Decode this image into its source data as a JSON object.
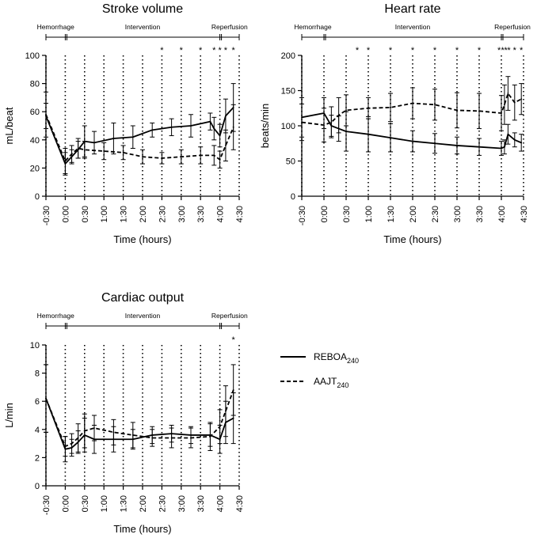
{
  "chart_data": [
    {
      "id": "sv",
      "type": "line",
      "title": "Stroke volume",
      "xlabel": "Time (hours)",
      "ylabel": "mL/beat",
      "ylim": [
        0,
        100
      ],
      "yticks": [
        0,
        20,
        40,
        60,
        80,
        100
      ],
      "xticks": [
        "-0:30",
        "0:00",
        "0:30",
        "1:00",
        "1:30",
        "2:00",
        "2:30",
        "3:00",
        "3:30",
        "4:00",
        "4:30"
      ],
      "phases": [
        "Hemorrhage",
        "Intervention",
        "Reperfusion"
      ],
      "series": [
        {
          "name": "REBOA240",
          "style": "solid",
          "points": [
            {
              "x": -0.5,
              "y": 57,
              "err": 9
            },
            {
              "x": 0,
              "y": 23,
              "err": 8
            },
            {
              "x": 0.167,
              "y": 28,
              "err": 5
            },
            {
              "x": 0.333,
              "y": 33,
              "err": 6
            },
            {
              "x": 0.5,
              "y": 39,
              "err": 11
            },
            {
              "x": 0.75,
              "y": 38,
              "err": 8
            },
            {
              "x": 1.25,
              "y": 41,
              "err": 11
            },
            {
              "x": 1.75,
              "y": 42,
              "err": 8
            },
            {
              "x": 2.25,
              "y": 47,
              "err": 5
            },
            {
              "x": 2.75,
              "y": 49,
              "err": 6
            },
            {
              "x": 3.25,
              "y": 50,
              "err": 8
            },
            {
              "x": 3.75,
              "y": 53,
              "err": 6
            },
            {
              "x": 3.85,
              "y": 48,
              "err": 8
            },
            {
              "x": 4.0,
              "y": 43,
              "err": 8
            },
            {
              "x": 4.15,
              "y": 57,
              "err": 12
            },
            {
              "x": 4.35,
              "y": 63,
              "err": 17
            }
          ]
        },
        {
          "name": "AAJT240",
          "style": "dashed",
          "points": [
            {
              "x": -0.5,
              "y": 58,
              "err": 16
            },
            {
              "x": 0,
              "y": 25,
              "err": 9
            },
            {
              "x": 0.167,
              "y": 30,
              "err": 6
            },
            {
              "x": 0.333,
              "y": 34,
              "err": 7
            },
            {
              "x": 0.5,
              "y": 33,
              "err": 6
            },
            {
              "x": 1.0,
              "y": 32,
              "err": 6
            },
            {
              "x": 1.5,
              "y": 31,
              "err": 5
            },
            {
              "x": 2.0,
              "y": 28,
              "err": 5
            },
            {
              "x": 2.5,
              "y": 27,
              "err": 4
            },
            {
              "x": 3.0,
              "y": 28,
              "err": 5
            },
            {
              "x": 3.5,
              "y": 29,
              "err": 6
            },
            {
              "x": 3.85,
              "y": 29,
              "err": 7
            },
            {
              "x": 4.0,
              "y": 26,
              "err": 6
            },
            {
              "x": 4.15,
              "y": 36,
              "err": 11
            },
            {
              "x": 4.35,
              "y": 49,
              "err": 16
            }
          ]
        }
      ],
      "significance": [
        {
          "x": 2.5,
          "label": "*"
        },
        {
          "x": 3.0,
          "label": "*"
        },
        {
          "x": 3.5,
          "label": "*"
        },
        {
          "x": 3.85,
          "label": "*"
        },
        {
          "x": 4.0,
          "label": "*"
        },
        {
          "x": 4.15,
          "label": "*"
        },
        {
          "x": 4.35,
          "label": "*"
        }
      ]
    },
    {
      "id": "hr",
      "type": "line",
      "title": "Heart rate",
      "xlabel": "Time (hours)",
      "ylabel": "beats/min",
      "ylim": [
        0,
        200
      ],
      "yticks": [
        0,
        50,
        100,
        150,
        200
      ],
      "xticks": [
        "-0:30",
        "0:00",
        "0:30",
        "1:00",
        "1:30",
        "2:00",
        "2:30",
        "3:00",
        "3:30",
        "4:00",
        "4:30"
      ],
      "phases": [
        "Hemorrhage",
        "Intervention",
        "Reperfusion"
      ],
      "series": [
        {
          "name": "REBOA240",
          "style": "solid",
          "points": [
            {
              "x": -0.5,
              "y": 112,
              "err": 28
            },
            {
              "x": 0,
              "y": 118,
              "err": 22
            },
            {
              "x": 0.167,
              "y": 100,
              "err": 15
            },
            {
              "x": 0.333,
              "y": 96,
              "err": 18
            },
            {
              "x": 0.5,
              "y": 92,
              "err": 28
            },
            {
              "x": 1.0,
              "y": 88,
              "err": 25
            },
            {
              "x": 1.5,
              "y": 83,
              "err": 20
            },
            {
              "x": 2.0,
              "y": 78,
              "err": 15
            },
            {
              "x": 2.5,
              "y": 75,
              "err": 14
            },
            {
              "x": 3.0,
              "y": 72,
              "err": 12
            },
            {
              "x": 3.5,
              "y": 70,
              "err": 12
            },
            {
              "x": 4.0,
              "y": 68,
              "err": 10
            },
            {
              "x": 4.07,
              "y": 70,
              "err": 10
            },
            {
              "x": 4.15,
              "y": 88,
              "err": 14
            },
            {
              "x": 4.3,
              "y": 80,
              "err": 10
            },
            {
              "x": 4.45,
              "y": 76,
              "err": 12
            }
          ]
        },
        {
          "name": "AAJT240",
          "style": "dashed",
          "points": [
            {
              "x": -0.5,
              "y": 105,
              "err": 26
            },
            {
              "x": 0,
              "y": 101,
              "err": 24
            },
            {
              "x": 0.167,
              "y": 105,
              "err": 22
            },
            {
              "x": 0.333,
              "y": 115,
              "err": 25
            },
            {
              "x": 0.5,
              "y": 122,
              "err": 22
            },
            {
              "x": 1.0,
              "y": 125,
              "err": 15
            },
            {
              "x": 1.5,
              "y": 126,
              "err": 20
            },
            {
              "x": 2.0,
              "y": 132,
              "err": 22
            },
            {
              "x": 2.5,
              "y": 130,
              "err": 22
            },
            {
              "x": 3.0,
              "y": 122,
              "err": 25
            },
            {
              "x": 3.5,
              "y": 121,
              "err": 25
            },
            {
              "x": 4.0,
              "y": 118,
              "err": 25
            },
            {
              "x": 4.07,
              "y": 130,
              "err": 28
            },
            {
              "x": 4.15,
              "y": 146,
              "err": 24
            },
            {
              "x": 4.3,
              "y": 133,
              "err": 25
            },
            {
              "x": 4.45,
              "y": 138,
              "err": 22
            }
          ]
        }
      ],
      "significance": [
        {
          "x": 0.75,
          "label": "*"
        },
        {
          "x": 1.0,
          "label": "*"
        },
        {
          "x": 1.5,
          "label": "*"
        },
        {
          "x": 2.0,
          "label": "*"
        },
        {
          "x": 2.5,
          "label": "*"
        },
        {
          "x": 3.0,
          "label": "*"
        },
        {
          "x": 3.5,
          "label": "*"
        },
        {
          "x": 3.95,
          "label": "*"
        },
        {
          "x": 4.03,
          "label": "*"
        },
        {
          "x": 4.1,
          "label": "*"
        },
        {
          "x": 4.17,
          "label": "*"
        },
        {
          "x": 4.3,
          "label": "*"
        },
        {
          "x": 4.45,
          "label": "*"
        }
      ]
    },
    {
      "id": "co",
      "type": "line",
      "title": "Cardiac output",
      "xlabel": "Time (hours)",
      "ylabel": "L/min",
      "ylim": [
        0,
        10
      ],
      "yticks": [
        0,
        2,
        4,
        6,
        8,
        10
      ],
      "xticks": [
        "-0:30",
        "0:00",
        "0:30",
        "1:00",
        "1:30",
        "2:00",
        "2:30",
        "3:00",
        "3:30",
        "4:00",
        "4:30"
      ],
      "phases": [
        "Hemorrhage",
        "Intervention",
        "Reperfusion"
      ],
      "series": [
        {
          "name": "REBOA240",
          "style": "solid",
          "points": [
            {
              "x": -0.5,
              "y": 6.2,
              "err": 2.4
            },
            {
              "x": 0,
              "y": 2.6,
              "err": 0.9
            },
            {
              "x": 0.167,
              "y": 2.7,
              "err": 0.6
            },
            {
              "x": 0.333,
              "y": 3.1,
              "err": 0.8
            },
            {
              "x": 0.5,
              "y": 3.6,
              "err": 1.2
            },
            {
              "x": 0.75,
              "y": 3.3,
              "err": 1.0
            },
            {
              "x": 1.25,
              "y": 3.3,
              "err": 0.9
            },
            {
              "x": 1.75,
              "y": 3.3,
              "err": 0.7
            },
            {
              "x": 2.25,
              "y": 3.6,
              "err": 0.6
            },
            {
              "x": 2.75,
              "y": 3.7,
              "err": 0.6
            },
            {
              "x": 3.25,
              "y": 3.6,
              "err": 0.6
            },
            {
              "x": 3.75,
              "y": 3.6,
              "err": 0.8
            },
            {
              "x": 4.0,
              "y": 3.3,
              "err": 1.0
            },
            {
              "x": 4.15,
              "y": 4.5,
              "err": 1.5
            },
            {
              "x": 4.35,
              "y": 4.8,
              "err": 1.8
            }
          ]
        },
        {
          "name": "AAJT240",
          "style": "dashed",
          "points": [
            {
              "x": -0.5,
              "y": 6.2,
              "err": 2.4
            },
            {
              "x": 0,
              "y": 2.8,
              "err": 0.7
            },
            {
              "x": 0.167,
              "y": 3.0,
              "err": 0.7
            },
            {
              "x": 0.333,
              "y": 3.4,
              "err": 1.0
            },
            {
              "x": 0.5,
              "y": 3.9,
              "err": 1.2
            },
            {
              "x": 0.75,
              "y": 4.1,
              "err": 0.9
            },
            {
              "x": 1.25,
              "y": 3.8,
              "err": 0.9
            },
            {
              "x": 1.75,
              "y": 3.6,
              "err": 0.9
            },
            {
              "x": 2.25,
              "y": 3.4,
              "err": 0.6
            },
            {
              "x": 2.75,
              "y": 3.4,
              "err": 0.7
            },
            {
              "x": 3.25,
              "y": 3.4,
              "err": 0.7
            },
            {
              "x": 3.75,
              "y": 3.5,
              "err": 1.0
            },
            {
              "x": 4.0,
              "y": 4.2,
              "err": 1.2
            },
            {
              "x": 4.15,
              "y": 5.3,
              "err": 1.8
            },
            {
              "x": 4.35,
              "y": 6.8,
              "err": 1.8
            }
          ]
        }
      ],
      "significance": [
        {
          "x": 4.35,
          "label": "*"
        }
      ]
    }
  ],
  "legend": [
    {
      "name": "REBOA",
      "subscript": "240",
      "style": "solid"
    },
    {
      "name": "AAJT",
      "subscript": "240",
      "style": "dashed"
    }
  ]
}
